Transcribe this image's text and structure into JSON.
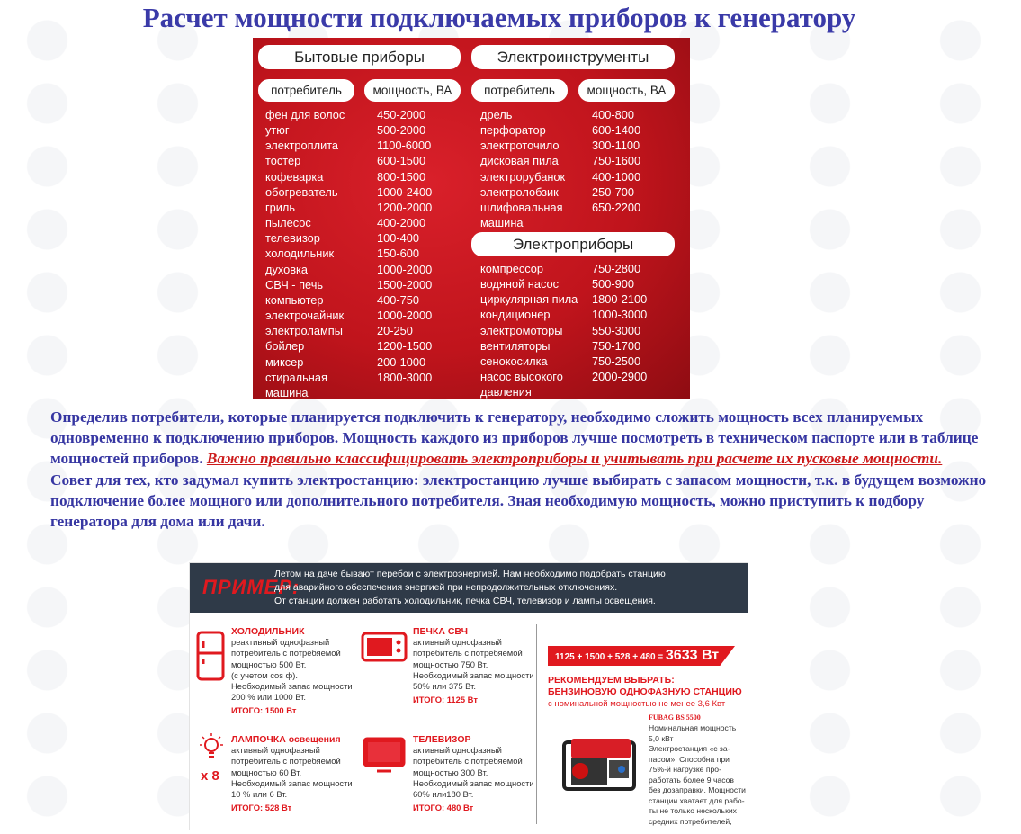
{
  "page_title": "Расчет мощности подключаемых приборов к генератору",
  "power_table": {
    "household": {
      "title": "Бытовые приборы",
      "col_consumer": "потребитель",
      "col_power": "мощность, ВА",
      "rows": [
        {
          "name": "фен для волос",
          "power": "450-2000"
        },
        {
          "name": "утюг",
          "power": "500-2000"
        },
        {
          "name": "электроплита",
          "power": "1100-6000"
        },
        {
          "name": "тостер",
          "power": "600-1500"
        },
        {
          "name": "кофеварка",
          "power": "800-1500"
        },
        {
          "name": "обогреватель",
          "power": "1000-2400"
        },
        {
          "name": "гриль",
          "power": "1200-2000"
        },
        {
          "name": "пылесос",
          "power": "400-2000"
        },
        {
          "name": "телевизор",
          "power": "100-400"
        },
        {
          "name": "холодильник",
          "power": "150-600"
        },
        {
          "name": "духовка",
          "power": "1000-2000"
        },
        {
          "name": "СВЧ - печь",
          "power": "1500-2000"
        },
        {
          "name": "компьютер",
          "power": "400-750"
        },
        {
          "name": "электрочайник",
          "power": "1000-2000"
        },
        {
          "name": "электролампы",
          "power": "20-250"
        },
        {
          "name": "бойлер",
          "power": "1200-1500"
        },
        {
          "name": "миксер",
          "power": "200-1000"
        },
        {
          "name": "стиральная\nмашина",
          "power": "1800-3000"
        }
      ]
    },
    "tools": {
      "title": "Электроинструменты",
      "col_consumer": "потребитель",
      "col_power": "мощность, ВА",
      "rows": [
        {
          "name": "дрель",
          "power": "400-800"
        },
        {
          "name": "перфоратор",
          "power": "600-1400"
        },
        {
          "name": "электроточило",
          "power": "300-1100"
        },
        {
          "name": "дисковая пила",
          "power": "750-1600"
        },
        {
          "name": "электрорубанок",
          "power": "400-1000"
        },
        {
          "name": "электролобзик",
          "power": "250-700"
        },
        {
          "name": "шлифовальная\nмашина",
          "power": "650-2200"
        }
      ]
    },
    "appliances": {
      "title": "Электроприборы",
      "rows": [
        {
          "name": "компрессор",
          "power": "750-2800"
        },
        {
          "name": "водяной насос",
          "power": "500-900"
        },
        {
          "name": "циркулярная пила",
          "power": "1800-2100"
        },
        {
          "name": "кондиционер",
          "power": "1000-3000"
        },
        {
          "name": "электромоторы",
          "power": "550-3000"
        },
        {
          "name": "вентиляторы",
          "power": "750-1700"
        },
        {
          "name": "сенокосилка",
          "power": "750-2500"
        },
        {
          "name": "насос высокого\nдавления",
          "power": "2000-2900"
        }
      ]
    }
  },
  "body": {
    "p1": "Определив потребители, которые планируется подключить к генератору, необходимо сложить мощность всех планируемых одновременно к подключению приборов. Мощность каждого из приборов лучше посмотреть в техническом паспорте или в таблице мощностей приборов. ",
    "warning": "Важно правильно классифицировать электроприборы и учитывать при расчете их пусковые мощности.",
    "p2": "Совет для тех, кто задумал купить электростанцию: электростанцию лучше выбирать с запасом мощности, т.к. в будущем возможно подключение более мощного или дополнительного потребителя. Зная необходимую мощность, можно приступить к подбору генератора для дома или дачи."
  },
  "example": {
    "label": "ПРИМЕР:",
    "intro": "Летом на даче бывают перебои с электроэнергией. Нам необходимо подобрать станцию\nдля аварийного обеспечения энергией при непродолжительных отключениях.\nОт станции должен работать холодильник, печка СВЧ, телевизор и лампы освещения.",
    "items": [
      {
        "icon": "fridge-icon",
        "title": "ХОЛОДИЛЬНИК —",
        "desc": "реактивный однофазный\nпотребитель с потребяемой\nмощностью 500 Вт.\n(с учетом cos ф).\nНеобходимый запас мощности\n200 % или 1000 Вт.",
        "total": "ИТОГО: 1500 Вт"
      },
      {
        "icon": "microwave-icon",
        "title": "ПЕЧКА СВЧ —",
        "desc": "активный однофазный\nпотребитель с потребяемой\nмощностью 750 Вт.\nНеобходимый запас мощности\n50% или 375 Вт.",
        "total": "ИТОГО: 1125 Вт"
      },
      {
        "icon": "lightbulb-icon",
        "title": "ЛАМПОЧКА освещения —",
        "multiplier": "x 8",
        "desc": "активный однофазный\nпотребитель с потребяемой\nмощностью 60 Вт.\nНеобходимый запас мощности\n10 % или 6 Вт.",
        "total": "ИТОГО: 528 Вт"
      },
      {
        "icon": "tv-icon",
        "title": "ТЕЛЕВИЗОР —",
        "desc": "активный однофазный\nпотребитель с потребяемой\nмощностью 300 Вт.\nНеобходимый запас мощности\n60% или180 Вт.",
        "total": "ИТОГО: 480 Вт"
      }
    ],
    "sum_formula": "1125 + 1500 + 528 + 480 = ",
    "sum_total": "3633 Вт",
    "recommend": "РЕКОМЕНДУЕМ ВЫБРАТЬ:\nБЕНЗИНОВУЮ ОДНОФАЗНУЮ СТАНЦИЮ",
    "recommend_sub": "с номинальной мощностью не менее 3,6 Квт",
    "model": "FUBAG BS 5500",
    "model_desc": "Номинальная мощность\n5,0 кВт\nЭлектростанция «с за-\nпасом». Способна при\n75%-й нагрузке про-\nработать более 9 часов\nбез дозаправки. Мощности\nстанции хватает для рабо-\nты не только нескольких\nсредних потребителей,\nно и для подключения\nоборудования высокой\nмощности.",
    "colors": {
      "accent": "#e0191f",
      "header_bg": "#2f3a48"
    }
  },
  "colors": {
    "title": "#3a3aa8",
    "text": "#3636a2",
    "warning": "#cc1a1a",
    "table_bg": "#c0141c"
  }
}
